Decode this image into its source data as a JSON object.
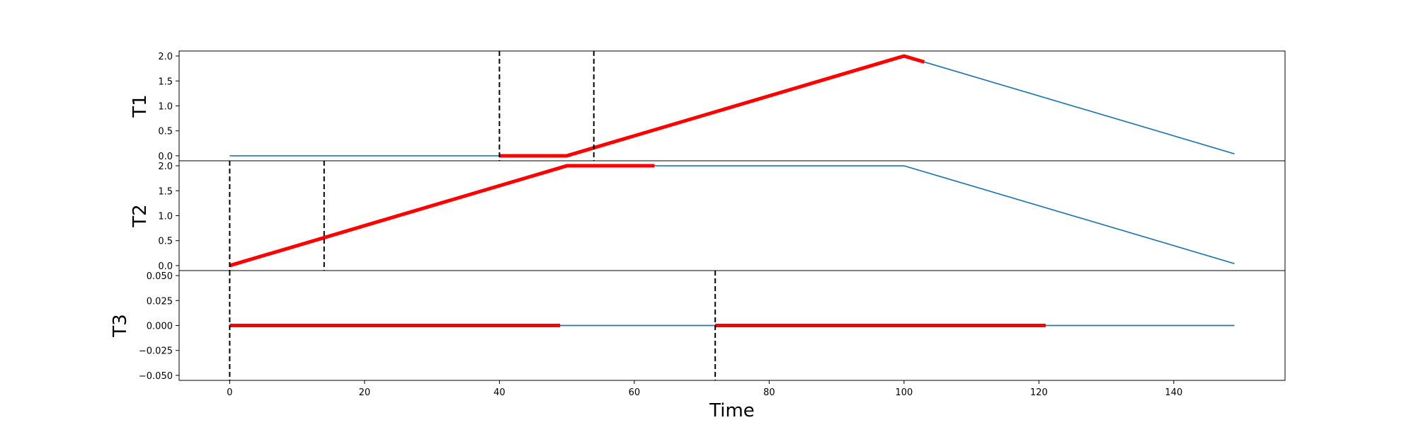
{
  "chart_data": {
    "type": "line",
    "xlabel": "Time",
    "xlim": [
      -7.5,
      156.5
    ],
    "x_ticks": [
      0,
      20,
      40,
      60,
      80,
      100,
      120,
      140
    ],
    "colors": {
      "base": "#1f77b4",
      "highlight": "#ff0000",
      "marker": "#000000"
    },
    "panels": [
      {
        "name": "T1",
        "ylabel": "T1",
        "ylim": [
          -0.1,
          2.1
        ],
        "y_ticks": [
          0.0,
          0.5,
          1.0,
          1.5,
          2.0
        ],
        "y_tick_labels": [
          "0.0",
          "0.5",
          "1.0",
          "1.5",
          "2.0"
        ],
        "line": [
          [
            0,
            0
          ],
          [
            50,
            0
          ],
          [
            100,
            2
          ],
          [
            149,
            0.04
          ]
        ],
        "highlight": [
          [
            40,
            0
          ],
          [
            50,
            0
          ],
          [
            100,
            2
          ],
          [
            103,
            1.88
          ]
        ],
        "vlines": [
          40,
          54
        ]
      },
      {
        "name": "T2",
        "ylabel": "T2",
        "ylim": [
          -0.1,
          2.1
        ],
        "y_ticks": [
          0.0,
          0.5,
          1.0,
          1.5,
          2.0
        ],
        "y_tick_labels": [
          "0.0",
          "0.5",
          "1.0",
          "1.5",
          "2.0"
        ],
        "line": [
          [
            0,
            0
          ],
          [
            50,
            2
          ],
          [
            100,
            2
          ],
          [
            149,
            0.04
          ]
        ],
        "highlight": [
          [
            0,
            0
          ],
          [
            50,
            2
          ],
          [
            63,
            2
          ]
        ],
        "vlines": [
          0,
          14
        ]
      },
      {
        "name": "T3",
        "ylabel": "T3",
        "ylim": [
          -0.055,
          0.055
        ],
        "y_ticks": [
          -0.05,
          -0.025,
          0.0,
          0.025,
          0.05
        ],
        "y_tick_labels": [
          "−0.050",
          "−0.025",
          "0.000",
          "0.025",
          "0.050"
        ],
        "line": [
          [
            0,
            0
          ],
          [
            149,
            0
          ]
        ],
        "highlights": [
          [
            [
              0,
              0
            ],
            [
              49,
              0
            ]
          ],
          [
            [
              72,
              0
            ],
            [
              121,
              0
            ]
          ]
        ],
        "vlines": [
          0,
          72
        ]
      }
    ]
  }
}
